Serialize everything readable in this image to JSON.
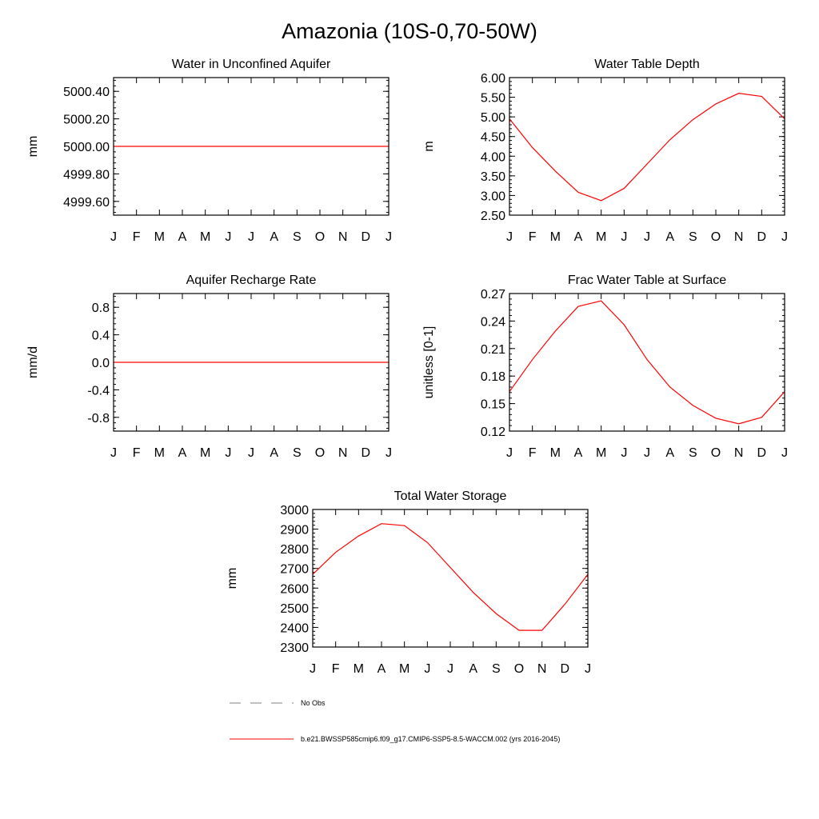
{
  "figure": {
    "title": "Amazonia (10S-0,70-50W)"
  },
  "months": [
    "J",
    "F",
    "M",
    "A",
    "M",
    "J",
    "J",
    "A",
    "S",
    "O",
    "N",
    "D",
    "J"
  ],
  "chart_data": [
    {
      "type": "line",
      "title": "Water in Unconfined Aquifer",
      "ylabel": "mm",
      "xlabel": "",
      "ylim": [
        4999.5,
        5000.5
      ],
      "yticks": [
        4999.6,
        4999.8,
        5000.0,
        5000.2,
        5000.4
      ],
      "ytick_labels": [
        "4999.60",
        "4999.80",
        "5000.00",
        "5000.20",
        "5000.40"
      ],
      "minor_step": 0.04,
      "categories": [
        "J",
        "F",
        "M",
        "A",
        "M",
        "J",
        "J",
        "A",
        "S",
        "O",
        "N",
        "D",
        "J"
      ],
      "series": [
        {
          "color": "#ff0000",
          "values": [
            5000,
            5000,
            5000,
            5000,
            5000,
            5000,
            5000,
            5000,
            5000,
            5000,
            5000,
            5000,
            5000
          ]
        }
      ]
    },
    {
      "type": "line",
      "title": "Water Table Depth",
      "ylabel": "m",
      "xlabel": "",
      "ylim": [
        2.5,
        6.0
      ],
      "yticks": [
        2.5,
        3.0,
        3.5,
        4.0,
        4.5,
        5.0,
        5.5,
        6.0
      ],
      "ytick_labels": [
        "2.50",
        "3.00",
        "3.50",
        "4.00",
        "4.50",
        "5.00",
        "5.50",
        "6.00"
      ],
      "minor_step": 0.1,
      "categories": [
        "J",
        "F",
        "M",
        "A",
        "M",
        "J",
        "J",
        "A",
        "S",
        "O",
        "N",
        "D",
        "J"
      ],
      "series": [
        {
          "color": "#ff0000",
          "values": [
            4.95,
            4.22,
            3.62,
            3.08,
            2.87,
            3.18,
            3.8,
            4.42,
            4.93,
            5.33,
            5.6,
            5.52,
            4.95
          ]
        }
      ]
    },
    {
      "type": "line",
      "title": "Aquifer Recharge Rate",
      "ylabel": "mm/d",
      "xlabel": "",
      "ylim": [
        -1.0,
        1.0
      ],
      "yticks": [
        -0.8,
        -0.4,
        0.0,
        0.4,
        0.8
      ],
      "ytick_labels": [
        "-0.8",
        "-0.4",
        "0.0",
        "0.4",
        "0.8"
      ],
      "minor_step": 0.08,
      "categories": [
        "J",
        "F",
        "M",
        "A",
        "M",
        "J",
        "J",
        "A",
        "S",
        "O",
        "N",
        "D",
        "J"
      ],
      "series": [
        {
          "color": "#ff0000",
          "values": [
            0,
            0,
            0,
            0,
            0,
            0,
            0,
            0,
            0,
            0,
            0,
            0,
            0
          ]
        }
      ]
    },
    {
      "type": "line",
      "title": "Frac Water Table at Surface",
      "ylabel": "unitless [0-1]",
      "xlabel": "",
      "ylim": [
        0.12,
        0.27
      ],
      "yticks": [
        0.12,
        0.15,
        0.18,
        0.21,
        0.24,
        0.27
      ],
      "ytick_labels": [
        "0.12",
        "0.15",
        "0.18",
        "0.21",
        "0.24",
        "0.27"
      ],
      "minor_step": 0.006,
      "categories": [
        "J",
        "F",
        "M",
        "A",
        "M",
        "J",
        "J",
        "A",
        "S",
        "O",
        "N",
        "D",
        "J"
      ],
      "series": [
        {
          "color": "#ff0000",
          "values": [
            0.163,
            0.198,
            0.229,
            0.256,
            0.262,
            0.236,
            0.198,
            0.168,
            0.148,
            0.134,
            0.128,
            0.135,
            0.163
          ]
        }
      ]
    },
    {
      "type": "line",
      "title": "Total Water Storage",
      "ylabel": "mm",
      "xlabel": "",
      "ylim": [
        2300,
        3000
      ],
      "yticks": [
        2300,
        2400,
        2500,
        2600,
        2700,
        2800,
        2900,
        3000
      ],
      "ytick_labels": [
        "2300",
        "2400",
        "2500",
        "2600",
        "2700",
        "2800",
        "2900",
        "3000"
      ],
      "minor_step": 20,
      "categories": [
        "J",
        "F",
        "M",
        "A",
        "M",
        "J",
        "J",
        "A",
        "S",
        "O",
        "N",
        "D",
        "J"
      ],
      "series": [
        {
          "color": "#ff0000",
          "values": [
            2670,
            2782,
            2865,
            2928,
            2918,
            2832,
            2705,
            2578,
            2470,
            2385,
            2385,
            2518,
            2670
          ]
        }
      ]
    }
  ],
  "legend": {
    "placement": "bottom",
    "entries": [
      {
        "label": "No Obs",
        "color": "#808080",
        "style": "dashed"
      },
      {
        "label": "b.e21.BWSSP585cmip6.f09_g17.CMIP6-SSP5-8.5-WACCM.002 (yrs 2016-2045)",
        "color": "#ff0000",
        "style": "solid"
      }
    ]
  }
}
